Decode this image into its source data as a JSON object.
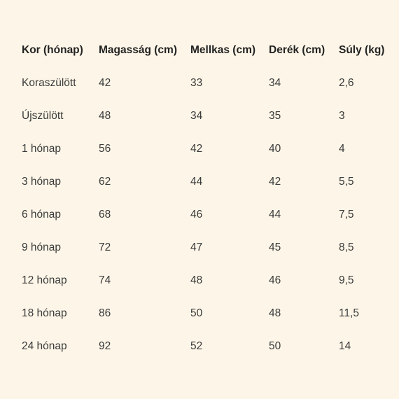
{
  "table": {
    "headers": [
      "Kor (hónap)",
      "Magasság (cm)",
      "Mellkas (cm)",
      "Derék (cm)",
      "Súly (kg)"
    ],
    "rows": [
      [
        "Koraszülött",
        "42",
        "33",
        "34",
        "2,6"
      ],
      [
        "Újszülött",
        "48",
        "34",
        "35",
        "3"
      ],
      [
        "1 hónap",
        "56",
        "42",
        "40",
        "4"
      ],
      [
        "3 hónap",
        "62",
        "44",
        "42",
        "5,5"
      ],
      [
        "6 hónap",
        "68",
        "46",
        "44",
        "7,5"
      ],
      [
        "9 hónap",
        "72",
        "47",
        "45",
        "8,5"
      ],
      [
        "12 hónap",
        "74",
        "48",
        "46",
        "9,5"
      ],
      [
        "18 hónap",
        "86",
        "50",
        "48",
        "11,5"
      ],
      [
        "24 hónap",
        "92",
        "52",
        "50",
        "14"
      ]
    ]
  }
}
